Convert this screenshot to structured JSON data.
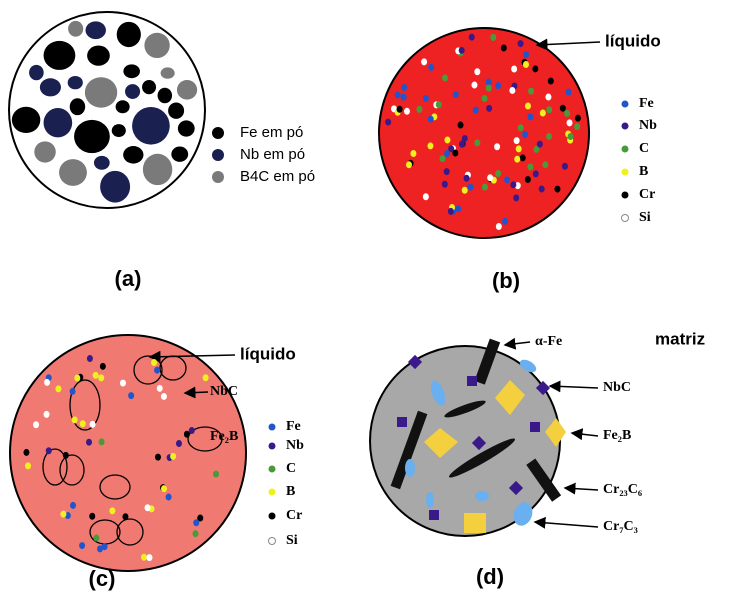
{
  "panels": [
    {
      "label": "(a)",
      "legend": [
        "Fe em pó",
        "Nb em pó",
        "B4C em pó"
      ]
    },
    {
      "label": "(b)",
      "annotation": "líquido",
      "legend": [
        "Fe",
        "Nb",
        "C",
        "B",
        "Cr",
        "Si"
      ]
    },
    {
      "label": "(c)",
      "annotation": "líquido",
      "phases": [
        "NbC",
        "Fe₂B"
      ],
      "legend": [
        "Fe",
        "Nb",
        "C",
        "B",
        "Cr",
        "Si"
      ]
    },
    {
      "label": "(d)",
      "annotation": "matriz",
      "phases": [
        "α-Fe",
        "NbC",
        "Fe₂B",
        "Cr₂₃C₆",
        "Cr₇C₃"
      ]
    }
  ]
}
